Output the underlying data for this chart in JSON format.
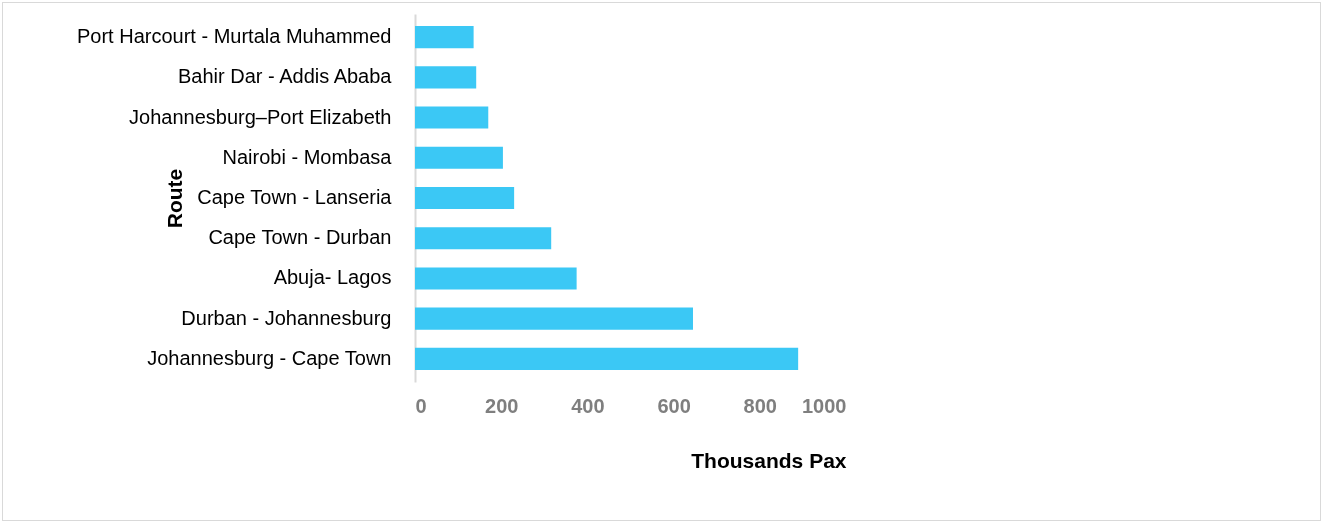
{
  "chart_data": {
    "type": "bar",
    "orientation": "horizontal",
    "xlabel": "Thousands Pax",
    "ylabel": "Route",
    "categories": [
      "Port Harcourt -  Murtala Muhammed",
      "Bahir Dar - Addis Ababa",
      "Johannesburg–Port Elizabeth",
      "Nairobi - Mombasa",
      "Cape Town - Lanseria",
      "Cape Town - Durban ",
      "Abuja- Lagos",
      "Durban - Johannesburg",
      "Johannesburg - Cape Town"
    ],
    "values": [
      136,
      142,
      170,
      204,
      230,
      316,
      375,
      645,
      889
    ],
    "color": "#3bc8f5",
    "xlim": [
      0,
      1000
    ],
    "xticks": [
      0,
      200,
      400,
      600,
      800,
      1000
    ],
    "grid": false
  }
}
